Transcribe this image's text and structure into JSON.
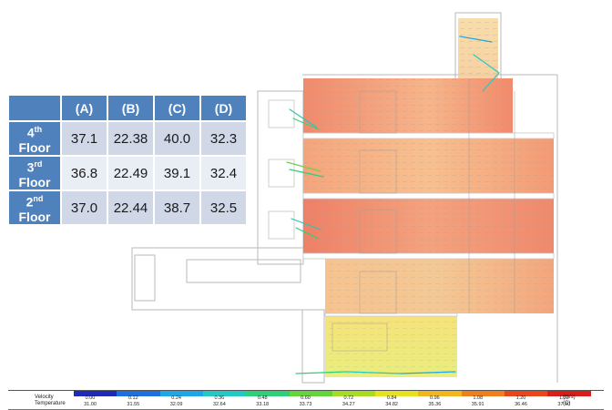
{
  "table": {
    "headers": [
      "",
      "(A)",
      "(B)",
      "(C)",
      "(D)"
    ],
    "rows": [
      {
        "label": "4",
        "sup": "th",
        "label2": "Floor",
        "values": [
          "37.1",
          "22.38",
          "40.0",
          "32.3"
        ]
      },
      {
        "label": "3",
        "sup": "rd",
        "label2": "Floor",
        "values": [
          "36.8",
          "22.49",
          "39.1",
          "32.4"
        ]
      },
      {
        "label": "2",
        "sup": "nd",
        "label2": "Floor",
        "values": [
          "37.0",
          "22.44",
          "38.7",
          "32.5"
        ]
      }
    ]
  },
  "legend": {
    "velocity_label": "Velocity",
    "temperature_label": "Temperature",
    "velocity_unit": "(m/s)",
    "temperature_unit": "(C)",
    "velocity_ticks": [
      "0.00",
      "0.12",
      "0.24",
      "0.36",
      "0.48",
      "0.60",
      "0.72",
      "0.84",
      "0.96",
      "1.08",
      "1.20",
      "1.32"
    ],
    "temperature_ticks": [
      "31.00",
      "31.55",
      "32.09",
      "32.64",
      "33.18",
      "33.73",
      "34.27",
      "34.82",
      "35.36",
      "35.91",
      "36.46",
      "37.00"
    ],
    "colors": [
      "#1d2bb8",
      "#1f6fe0",
      "#1ea7e6",
      "#24c9c6",
      "#2fcf7a",
      "#63d43a",
      "#a7dc26",
      "#e6e21f",
      "#f2b51f",
      "#ef7e1f",
      "#e8461c",
      "#d81e1b"
    ]
  }
}
